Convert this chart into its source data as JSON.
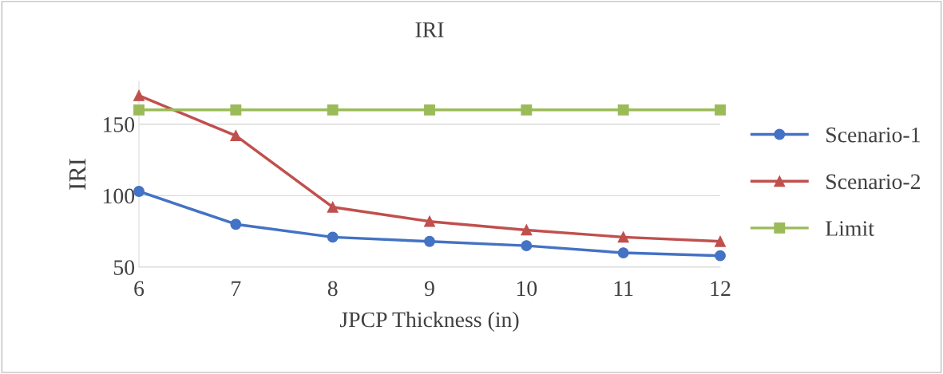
{
  "chart_data": {
    "type": "line",
    "title": "IRI",
    "xlabel": "JPCP Thickness (in)",
    "ylabel": "IRI",
    "x": [
      6,
      7,
      8,
      9,
      10,
      11,
      12
    ],
    "series": [
      {
        "name": "Scenario-1",
        "color": "#4472c4",
        "marker": "circle",
        "values": [
          103,
          80,
          71,
          68,
          65,
          60,
          58
        ]
      },
      {
        "name": "Scenario-2",
        "color": "#c0504d",
        "marker": "triangle",
        "values": [
          170,
          142,
          92,
          82,
          76,
          71,
          68
        ]
      },
      {
        "name": "Limit",
        "color": "#9bbb59",
        "marker": "square",
        "values": [
          160,
          160,
          160,
          160,
          160,
          160,
          160
        ]
      }
    ],
    "xlim": [
      6,
      12
    ],
    "xticks": [
      6,
      7,
      8,
      9,
      10,
      11,
      12
    ],
    "ylim": [
      50,
      180
    ],
    "yticks": [
      50,
      100,
      150
    ],
    "grid": "y",
    "legend": "right",
    "line_style": "solid"
  }
}
